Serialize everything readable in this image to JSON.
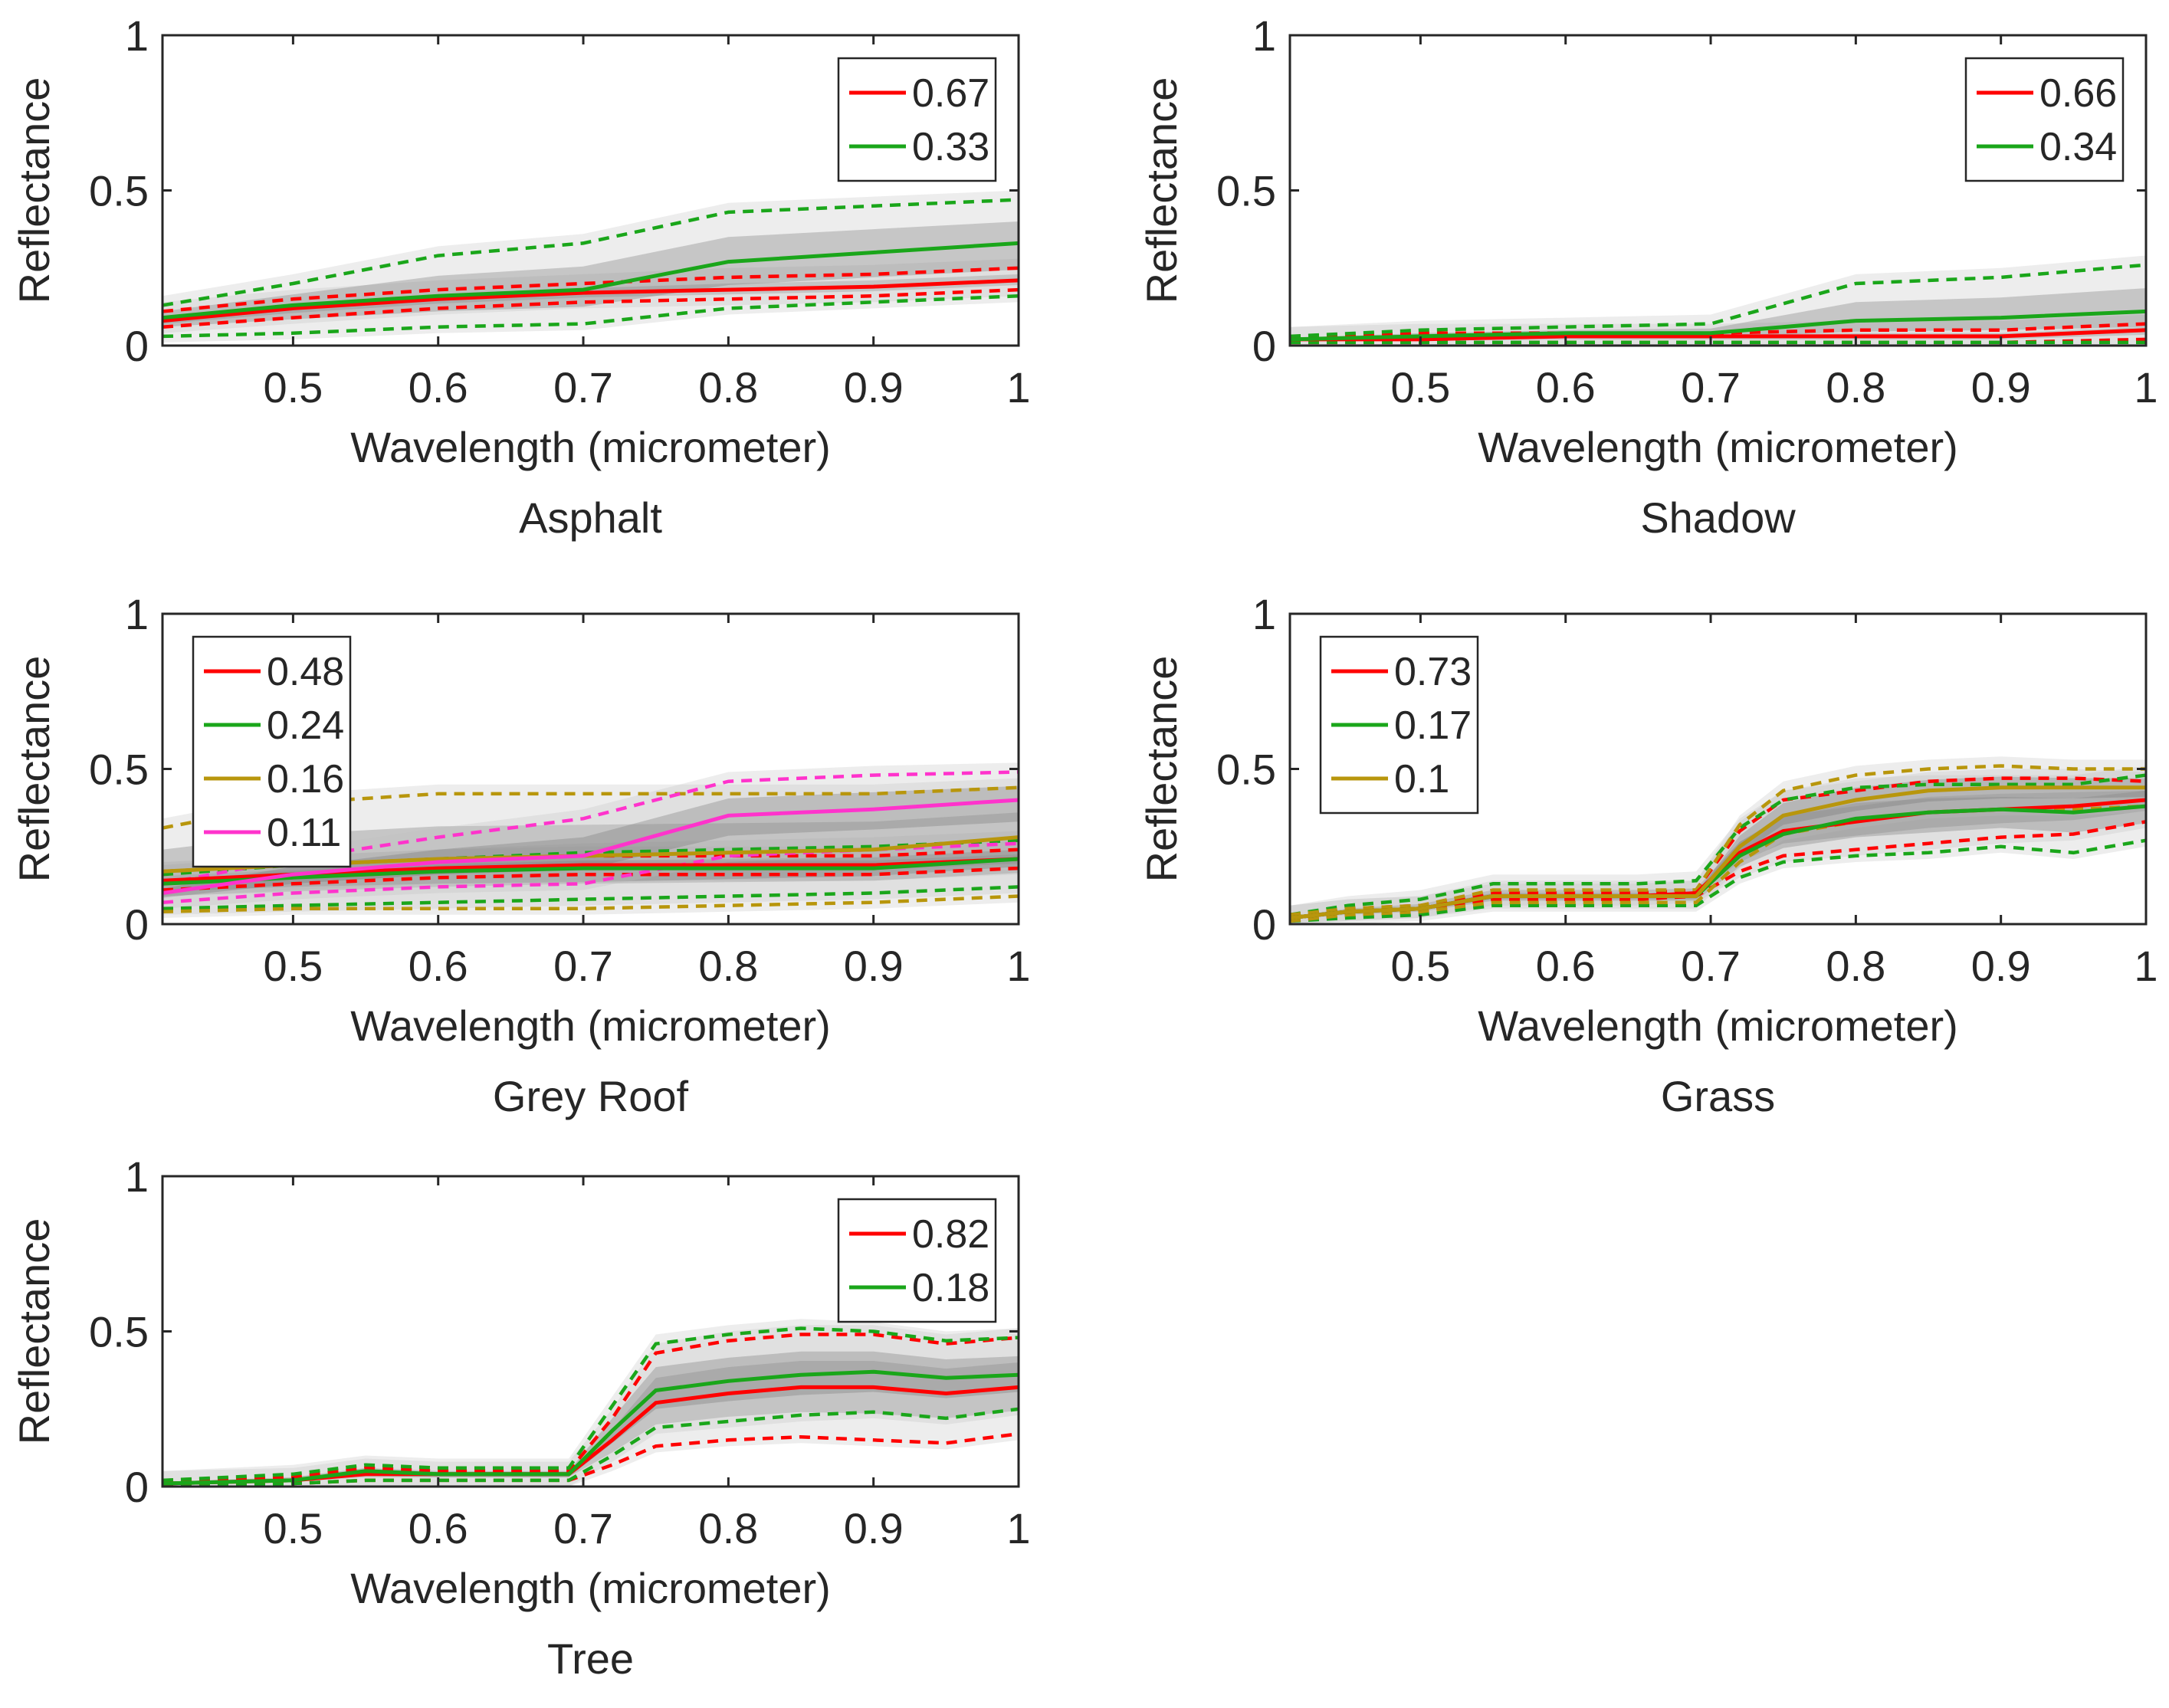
{
  "figure": {
    "colors": {
      "red": "#ff0000",
      "green": "#1aa61a",
      "gold": "#b8960c",
      "magenta": "#ff33cc",
      "black": "#000000"
    }
  },
  "chart_data": [
    {
      "type": "line",
      "title": "Asphalt",
      "xlabel": "Wavelength (micrometer)",
      "ylabel": "Reflectance",
      "xlim": [
        0.41,
        1.0
      ],
      "ylim": [
        0,
        1
      ],
      "xticks": [
        "0.5",
        "0.6",
        "0.7",
        "0.8",
        "0.9",
        "1"
      ],
      "yticks": [
        "0",
        "0.5",
        "1"
      ],
      "legend_position": "top-right",
      "series": [
        {
          "name": "0.67",
          "color": "#ff0000",
          "x": [
            0.41,
            0.5,
            0.6,
            0.7,
            0.8,
            0.9,
            1.0
          ],
          "mean": [
            0.08,
            0.12,
            0.15,
            0.17,
            0.18,
            0.19,
            0.21
          ],
          "upper": [
            0.11,
            0.15,
            0.18,
            0.2,
            0.22,
            0.23,
            0.25
          ],
          "lower": [
            0.06,
            0.09,
            0.12,
            0.14,
            0.15,
            0.16,
            0.18
          ]
        },
        {
          "name": "0.33",
          "color": "#1aa61a",
          "x": [
            0.41,
            0.5,
            0.6,
            0.7,
            0.8,
            0.9,
            1.0
          ],
          "mean": [
            0.09,
            0.13,
            0.16,
            0.18,
            0.27,
            0.3,
            0.33
          ],
          "upper": [
            0.13,
            0.2,
            0.29,
            0.33,
            0.43,
            0.45,
            0.47
          ],
          "lower": [
            0.03,
            0.04,
            0.06,
            0.07,
            0.12,
            0.14,
            0.16
          ]
        }
      ]
    },
    {
      "type": "line",
      "title": "Shadow",
      "xlabel": "Wavelength (micrometer)",
      "ylabel": "Reflectance",
      "xlim": [
        0.41,
        1.0
      ],
      "ylim": [
        0,
        1
      ],
      "xticks": [
        "0.5",
        "0.6",
        "0.7",
        "0.8",
        "0.9",
        "1"
      ],
      "yticks": [
        "0",
        "0.5",
        "1"
      ],
      "legend_position": "top-right",
      "series": [
        {
          "name": "0.66",
          "color": "#ff0000",
          "x": [
            0.41,
            0.5,
            0.6,
            0.7,
            0.8,
            0.9,
            1.0
          ],
          "mean": [
            0.02,
            0.02,
            0.03,
            0.03,
            0.03,
            0.03,
            0.05
          ],
          "upper": [
            0.03,
            0.04,
            0.04,
            0.04,
            0.05,
            0.05,
            0.07
          ],
          "lower": [
            0.01,
            0.01,
            0.01,
            0.01,
            0.01,
            0.01,
            0.02
          ]
        },
        {
          "name": "0.34",
          "color": "#1aa61a",
          "x": [
            0.41,
            0.5,
            0.6,
            0.7,
            0.8,
            0.9,
            1.0
          ],
          "mean": [
            0.02,
            0.03,
            0.04,
            0.04,
            0.08,
            0.09,
            0.11
          ],
          "upper": [
            0.03,
            0.05,
            0.06,
            0.07,
            0.2,
            0.22,
            0.26
          ],
          "lower": [
            0.01,
            0.01,
            0.01,
            0.01,
            0.01,
            0.01,
            0.01
          ]
        }
      ]
    },
    {
      "type": "line",
      "title": "Grey Roof",
      "xlabel": "Wavelength (micrometer)",
      "ylabel": "Reflectance",
      "xlim": [
        0.41,
        1.0
      ],
      "ylim": [
        0,
        1
      ],
      "xticks": [
        "0.5",
        "0.6",
        "0.7",
        "0.8",
        "0.9",
        "1"
      ],
      "yticks": [
        "0",
        "0.5",
        "1"
      ],
      "legend_position": "top-left",
      "series": [
        {
          "name": "0.48",
          "color": "#ff0000",
          "x": [
            0.41,
            0.5,
            0.6,
            0.7,
            0.8,
            0.9,
            1.0
          ],
          "mean": [
            0.14,
            0.16,
            0.18,
            0.19,
            0.19,
            0.19,
            0.21
          ],
          "upper": [
            0.17,
            0.19,
            0.21,
            0.22,
            0.22,
            0.22,
            0.24
          ],
          "lower": [
            0.11,
            0.13,
            0.15,
            0.16,
            0.16,
            0.16,
            0.18
          ]
        },
        {
          "name": "0.24",
          "color": "#1aa61a",
          "x": [
            0.41,
            0.5,
            0.6,
            0.7,
            0.8,
            0.9,
            1.0
          ],
          "mean": [
            0.13,
            0.15,
            0.17,
            0.18,
            0.18,
            0.18,
            0.21
          ],
          "upper": [
            0.16,
            0.19,
            0.21,
            0.23,
            0.24,
            0.25,
            0.27
          ],
          "lower": [
            0.05,
            0.06,
            0.07,
            0.08,
            0.09,
            0.1,
            0.12
          ]
        },
        {
          "name": "0.16",
          "color": "#b8960c",
          "x": [
            0.41,
            0.5,
            0.6,
            0.7,
            0.8,
            0.9,
            1.0
          ],
          "mean": [
            0.17,
            0.19,
            0.21,
            0.22,
            0.23,
            0.24,
            0.28
          ],
          "upper": [
            0.31,
            0.39,
            0.42,
            0.42,
            0.42,
            0.42,
            0.44
          ],
          "lower": [
            0.04,
            0.05,
            0.05,
            0.05,
            0.06,
            0.07,
            0.09
          ]
        },
        {
          "name": "0.11",
          "color": "#ff33cc",
          "x": [
            0.41,
            0.5,
            0.6,
            0.7,
            0.8,
            0.9,
            1.0
          ],
          "mean": [
            0.1,
            0.16,
            0.2,
            0.22,
            0.35,
            0.37,
            0.4
          ],
          "upper": [
            0.13,
            0.21,
            0.28,
            0.34,
            0.46,
            0.48,
            0.49
          ],
          "lower": [
            0.07,
            0.1,
            0.12,
            0.13,
            0.22,
            0.24,
            0.26
          ]
        }
      ]
    },
    {
      "type": "line",
      "title": "Grass",
      "xlabel": "Wavelength (micrometer)",
      "ylabel": "Reflectance",
      "xlim": [
        0.41,
        1.0
      ],
      "ylim": [
        0,
        1
      ],
      "xticks": [
        "0.5",
        "0.6",
        "0.7",
        "0.8",
        "0.9",
        "1"
      ],
      "yticks": [
        "0",
        "0.5",
        "1"
      ],
      "legend_position": "top-left",
      "series": [
        {
          "name": "0.73",
          "color": "#ff0000",
          "x": [
            0.41,
            0.45,
            0.5,
            0.55,
            0.6,
            0.65,
            0.69,
            0.72,
            0.75,
            0.8,
            0.85,
            0.9,
            0.95,
            1.0
          ],
          "mean": [
            0.02,
            0.04,
            0.05,
            0.09,
            0.09,
            0.09,
            0.1,
            0.23,
            0.3,
            0.33,
            0.36,
            0.37,
            0.38,
            0.4
          ],
          "upper": [
            0.03,
            0.05,
            0.06,
            0.1,
            0.1,
            0.1,
            0.11,
            0.3,
            0.4,
            0.43,
            0.46,
            0.47,
            0.47,
            0.46
          ],
          "lower": [
            0.01,
            0.03,
            0.04,
            0.08,
            0.08,
            0.08,
            0.09,
            0.17,
            0.22,
            0.24,
            0.26,
            0.28,
            0.29,
            0.33
          ]
        },
        {
          "name": "0.17",
          "color": "#1aa61a",
          "x": [
            0.41,
            0.45,
            0.5,
            0.55,
            0.6,
            0.65,
            0.69,
            0.72,
            0.75,
            0.8,
            0.85,
            0.9,
            0.95,
            1.0
          ],
          "mean": [
            0.02,
            0.04,
            0.05,
            0.09,
            0.09,
            0.09,
            0.09,
            0.22,
            0.29,
            0.34,
            0.36,
            0.37,
            0.36,
            0.38
          ],
          "upper": [
            0.03,
            0.06,
            0.08,
            0.13,
            0.13,
            0.13,
            0.14,
            0.31,
            0.4,
            0.44,
            0.45,
            0.45,
            0.45,
            0.48
          ],
          "lower": [
            0.01,
            0.02,
            0.03,
            0.06,
            0.06,
            0.06,
            0.06,
            0.15,
            0.2,
            0.22,
            0.23,
            0.25,
            0.23,
            0.27
          ]
        },
        {
          "name": "0.1",
          "color": "#b8960c",
          "x": [
            0.41,
            0.45,
            0.5,
            0.55,
            0.6,
            0.65,
            0.69,
            0.72,
            0.75,
            0.8,
            0.85,
            0.9,
            0.95,
            1.0
          ],
          "mean": [
            0.02,
            0.04,
            0.05,
            0.09,
            0.09,
            0.09,
            0.09,
            0.25,
            0.35,
            0.4,
            0.43,
            0.44,
            0.44,
            0.44
          ],
          "upper": [
            0.03,
            0.05,
            0.06,
            0.11,
            0.11,
            0.11,
            0.11,
            0.32,
            0.43,
            0.48,
            0.5,
            0.51,
            0.5,
            0.5
          ],
          "lower": [
            0.01,
            0.03,
            0.04,
            0.07,
            0.07,
            0.07,
            0.07,
            0.2,
            0.29,
            0.33,
            0.36,
            0.37,
            0.37,
            0.38
          ]
        }
      ]
    },
    {
      "type": "line",
      "title": "Tree",
      "xlabel": "Wavelength (micrometer)",
      "ylabel": "Reflectance",
      "xlim": [
        0.41,
        1.0
      ],
      "ylim": [
        0,
        1
      ],
      "xticks": [
        "0.5",
        "0.6",
        "0.7",
        "0.8",
        "0.9",
        "1"
      ],
      "yticks": [
        "0",
        "0.5",
        "1"
      ],
      "legend_position": "top-right",
      "series": [
        {
          "name": "0.82",
          "color": "#ff0000",
          "x": [
            0.41,
            0.5,
            0.55,
            0.6,
            0.65,
            0.69,
            0.72,
            0.75,
            0.8,
            0.85,
            0.9,
            0.95,
            1.0
          ],
          "mean": [
            0.01,
            0.02,
            0.04,
            0.04,
            0.04,
            0.04,
            0.15,
            0.27,
            0.3,
            0.32,
            0.32,
            0.3,
            0.32
          ],
          "upper": [
            0.02,
            0.03,
            0.06,
            0.05,
            0.05,
            0.05,
            0.22,
            0.43,
            0.47,
            0.49,
            0.49,
            0.46,
            0.48
          ],
          "lower": [
            0.0,
            0.01,
            0.02,
            0.02,
            0.02,
            0.02,
            0.07,
            0.13,
            0.15,
            0.16,
            0.15,
            0.14,
            0.17
          ]
        },
        {
          "name": "0.18",
          "color": "#1aa61a",
          "x": [
            0.41,
            0.5,
            0.55,
            0.6,
            0.65,
            0.69,
            0.72,
            0.75,
            0.8,
            0.85,
            0.9,
            0.95,
            1.0
          ],
          "mean": [
            0.01,
            0.02,
            0.05,
            0.04,
            0.04,
            0.04,
            0.18,
            0.31,
            0.34,
            0.36,
            0.37,
            0.35,
            0.36
          ],
          "upper": [
            0.02,
            0.04,
            0.07,
            0.06,
            0.06,
            0.06,
            0.26,
            0.46,
            0.49,
            0.51,
            0.5,
            0.47,
            0.48
          ],
          "lower": [
            0.0,
            0.01,
            0.02,
            0.02,
            0.02,
            0.02,
            0.1,
            0.19,
            0.21,
            0.23,
            0.24,
            0.22,
            0.25
          ]
        }
      ]
    }
  ]
}
